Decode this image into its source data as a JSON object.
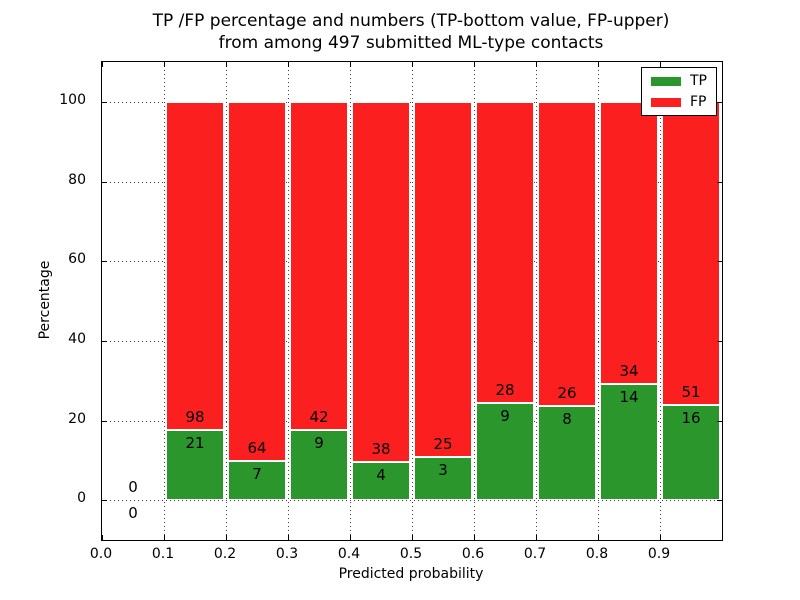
{
  "figure": {
    "title_line1": "TP /FP percentage and numbers (TP-bottom value, FP-upper)",
    "title_line2": "from among 497 submitted ML-type contacts"
  },
  "chart_data": {
    "type": "bar",
    "stacked": true,
    "title": "TP /FP percentage and numbers (TP-bottom value, FP-upper) from among 497 submitted ML-type contacts",
    "xlabel": "Predicted probability",
    "ylabel": "Percentage",
    "xlim": [
      0.0,
      1.0
    ],
    "ylim": [
      -10,
      110
    ],
    "grid": "dotted",
    "background_color": "#ffffff",
    "total_submitted": 497,
    "bar_annotation_rule": "FP count above green/red boundary, TP count below it",
    "xticks": [
      {
        "v": 0.0,
        "label": "0.0"
      },
      {
        "v": 0.1,
        "label": "0.1"
      },
      {
        "v": 0.2,
        "label": "0.2"
      },
      {
        "v": 0.3,
        "label": "0.3"
      },
      {
        "v": 0.4,
        "label": "0.4"
      },
      {
        "v": 0.5,
        "label": "0.5"
      },
      {
        "v": 0.6,
        "label": "0.6"
      },
      {
        "v": 0.7,
        "label": "0.7"
      },
      {
        "v": 0.8,
        "label": "0.8"
      },
      {
        "v": 0.9,
        "label": "0.9"
      }
    ],
    "yticks": [
      {
        "v": 0,
        "label": "0"
      },
      {
        "v": 20,
        "label": "20"
      },
      {
        "v": 40,
        "label": "40"
      },
      {
        "v": 60,
        "label": "60"
      },
      {
        "v": 80,
        "label": "80"
      },
      {
        "v": 100,
        "label": "100"
      }
    ],
    "legend": {
      "position": "upper-right",
      "entries": [
        {
          "label": "TP",
          "color": "#2b962b"
        },
        {
          "label": "FP",
          "color": "#fb1f1f"
        }
      ]
    },
    "categories": [
      "0.0-0.1",
      "0.1-0.2",
      "0.2-0.3",
      "0.3-0.4",
      "0.4-0.5",
      "0.5-0.6",
      "0.6-0.7",
      "0.7-0.8",
      "0.8-0.9",
      "0.9-1.0"
    ],
    "bins": [
      {
        "x0": 0.0,
        "x1": 0.1,
        "tp": 0,
        "fp": 0
      },
      {
        "x0": 0.1,
        "x1": 0.2,
        "tp": 21,
        "fp": 98
      },
      {
        "x0": 0.2,
        "x1": 0.3,
        "tp": 7,
        "fp": 64
      },
      {
        "x0": 0.3,
        "x1": 0.4,
        "tp": 9,
        "fp": 42
      },
      {
        "x0": 0.4,
        "x1": 0.5,
        "tp": 4,
        "fp": 38
      },
      {
        "x0": 0.5,
        "x1": 0.6,
        "tp": 3,
        "fp": 25
      },
      {
        "x0": 0.6,
        "x1": 0.7,
        "tp": 9,
        "fp": 28
      },
      {
        "x0": 0.7,
        "x1": 0.8,
        "tp": 8,
        "fp": 26
      },
      {
        "x0": 0.8,
        "x1": 0.9,
        "tp": 14,
        "fp": 34
      },
      {
        "x0": 0.9,
        "x1": 1.0,
        "tp": 16,
        "fp": 51
      }
    ],
    "series": [
      {
        "name": "TP",
        "values_pct": [
          0,
          17.6,
          9.9,
          17.6,
          9.5,
          10.7,
          24.3,
          23.5,
          29.2,
          23.9
        ]
      },
      {
        "name": "FP",
        "values_pct": [
          0,
          82.4,
          90.1,
          82.4,
          90.5,
          89.3,
          75.7,
          76.5,
          70.8,
          76.1
        ]
      }
    ]
  }
}
